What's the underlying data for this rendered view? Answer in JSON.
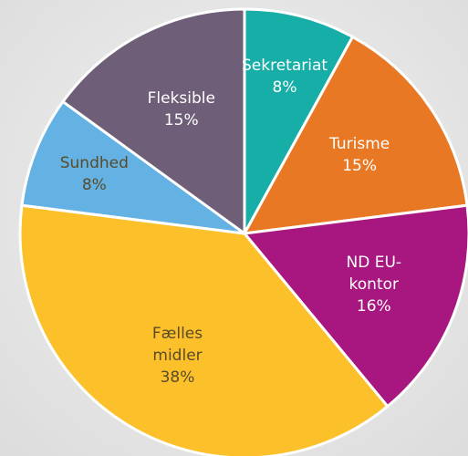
{
  "chart_data": {
    "type": "pie",
    "categories": [
      "Sekretariat",
      "Turisme",
      "ND EU-kontor",
      "Fælles midler",
      "Sundhed",
      "Fleksible"
    ],
    "values": [
      8,
      15,
      16,
      38,
      8,
      15
    ],
    "value_labels": [
      "8%",
      "15%",
      "16%",
      "38%",
      "8%",
      "15%"
    ],
    "colors": [
      "#17aea8",
      "#e87823",
      "#a8177f",
      "#fcc02a",
      "#63b2e3",
      "#6e5e77"
    ]
  }
}
